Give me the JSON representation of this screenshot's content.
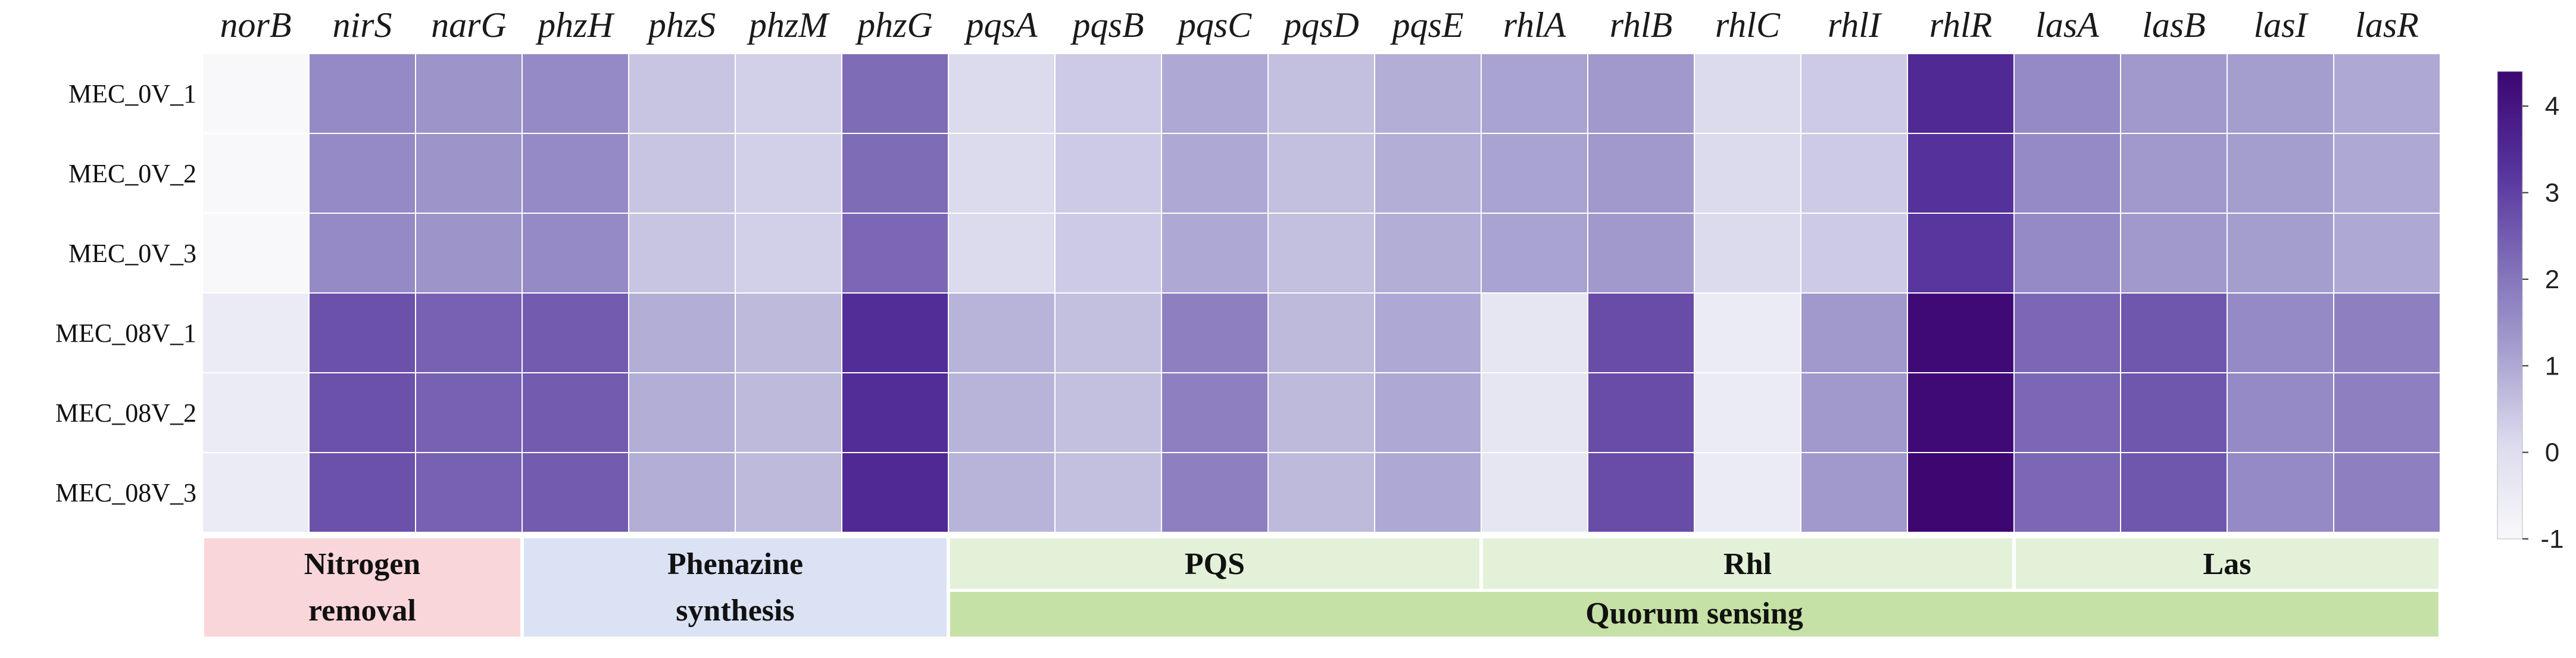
{
  "chart_data": {
    "type": "heatmap",
    "genes": [
      "norB",
      "nirS",
      "narG",
      "phzH",
      "phzS",
      "phzM",
      "phzG",
      "pqsA",
      "pqsB",
      "pqsC",
      "pqsD",
      "pqsE",
      "rhlA",
      "rhlB",
      "rhlC",
      "rhlI",
      "rhlR",
      "lasA",
      "lasB",
      "lasI",
      "lasR"
    ],
    "samples": [
      "MEC_0V_1",
      "MEC_0V_2",
      "MEC_0V_3",
      "MEC_08V_1",
      "MEC_08V_2",
      "MEC_08V_3"
    ],
    "values": [
      [
        -1.0,
        1.6,
        1.4,
        1.6,
        0.5,
        0.3,
        2.2,
        0.1,
        0.4,
        1.0,
        0.6,
        0.9,
        1.1,
        1.3,
        0.1,
        0.4,
        3.5,
        1.6,
        1.3,
        1.2,
        1.0
      ],
      [
        -1.0,
        1.6,
        1.4,
        1.6,
        0.5,
        0.3,
        2.2,
        0.1,
        0.4,
        1.0,
        0.6,
        0.9,
        1.1,
        1.3,
        0.1,
        0.4,
        3.3,
        1.6,
        1.3,
        1.2,
        1.0
      ],
      [
        -1.0,
        1.6,
        1.4,
        1.6,
        0.5,
        0.3,
        2.3,
        0.1,
        0.4,
        1.0,
        0.6,
        0.9,
        1.1,
        1.3,
        0.1,
        0.4,
        3.2,
        1.6,
        1.3,
        1.2,
        1.0
      ],
      [
        -0.5,
        2.7,
        2.4,
        2.5,
        0.9,
        0.7,
        3.4,
        0.8,
        0.6,
        1.8,
        0.7,
        1.0,
        -0.3,
        2.8,
        -0.5,
        1.3,
        4.3,
        2.3,
        2.6,
        1.6,
        1.8
      ],
      [
        -0.5,
        2.7,
        2.4,
        2.5,
        0.9,
        0.7,
        3.4,
        0.8,
        0.6,
        1.8,
        0.7,
        1.0,
        -0.3,
        2.8,
        -0.5,
        1.3,
        4.3,
        2.3,
        2.6,
        1.6,
        1.8
      ],
      [
        -0.5,
        2.7,
        2.4,
        2.5,
        0.9,
        0.7,
        3.5,
        0.8,
        0.6,
        1.8,
        0.7,
        1.0,
        -0.3,
        2.8,
        -0.5,
        1.3,
        4.4,
        2.3,
        2.6,
        1.6,
        1.8
      ]
    ],
    "colorbar": {
      "min": -1,
      "max": 4.4,
      "ticks": [
        -1,
        0,
        1,
        2,
        3,
        4
      ],
      "colors": [
        "#f8f8fb",
        "#dcdcee",
        "#a6a0cf",
        "#7d6ab6",
        "#54309b",
        "#3d0671"
      ]
    },
    "groups_row1": [
      {
        "label_lines": [
          "Nitrogen",
          "removal"
        ],
        "start": 0,
        "end": 3,
        "color": "#f9d6da"
      },
      {
        "label_lines": [
          "Phenazine",
          "synthesis"
        ],
        "start": 3,
        "end": 7,
        "color": "#dae2f4"
      },
      {
        "label_lines": [
          "PQS"
        ],
        "start": 7,
        "end": 12,
        "color": "#e3f1d9"
      },
      {
        "label_lines": [
          "Rhl"
        ],
        "start": 12,
        "end": 17,
        "color": "#e3f1d9"
      },
      {
        "label_lines": [
          "Las"
        ],
        "start": 17,
        "end": 21,
        "color": "#e3f1d9"
      }
    ],
    "groups_row2": [
      {
        "label": "Quorum sensing",
        "start": 7,
        "end": 21,
        "color": "#c5e1a5"
      }
    ]
  }
}
